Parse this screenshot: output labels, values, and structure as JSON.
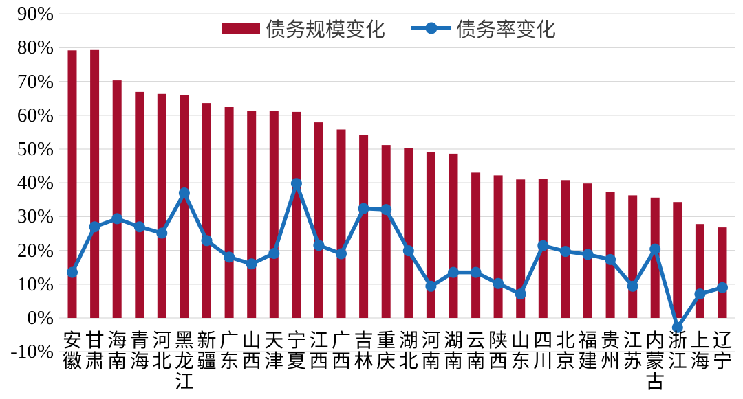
{
  "chart_data": {
    "type": "combo",
    "categories": [
      "安徽",
      "甘肃",
      "海南",
      "青海",
      "河北",
      "黑龙江",
      "新疆",
      "广东",
      "山西",
      "天津",
      "宁夏",
      "江西",
      "广西",
      "吉林",
      "重庆",
      "湖北",
      "河南",
      "湖南",
      "云南",
      "陕西",
      "山东",
      "四川",
      "北京",
      "福建",
      "贵州",
      "江苏",
      "内蒙古",
      "浙江",
      "上海",
      "辽宁"
    ],
    "series": [
      {
        "name": "债务规模变化",
        "type": "bar",
        "color": "#A50E2D",
        "values": [
          79.2,
          79.3,
          70.3,
          66.9,
          66.3,
          65.9,
          63.6,
          62.4,
          61.3,
          61.2,
          61.0,
          57.9,
          55.8,
          54.1,
          51.2,
          50.4,
          49.0,
          48.6,
          43.0,
          42.2,
          41.0,
          41.2,
          40.8,
          39.8,
          37.2,
          36.3,
          35.6,
          34.3,
          27.8,
          26.8
        ]
      },
      {
        "name": "债务率变化",
        "type": "line",
        "color": "#1B6FB9",
        "values": [
          13.5,
          27.0,
          29.4,
          27.0,
          25.1,
          37.0,
          22.9,
          18.0,
          16.0,
          19.1,
          39.8,
          21.5,
          19.0,
          32.4,
          32.1,
          19.9,
          9.4,
          13.5,
          13.5,
          10.2,
          7.1,
          21.4,
          19.7,
          18.8,
          17.3,
          9.4,
          20.4,
          -2.8,
          7.1,
          9.0
        ]
      }
    ],
    "ylim": [
      -10,
      90
    ],
    "y_tick_labels": [
      "90%",
      "80%",
      "70%",
      "60%",
      "50%",
      "40%",
      "30%",
      "20%",
      "10%",
      "0%",
      "-10%"
    ],
    "y_tick_values": [
      90,
      80,
      70,
      60,
      50,
      40,
      30,
      20,
      10,
      0,
      -10
    ],
    "grid": true,
    "legend_position": "top-center",
    "gridline_color": "#D9D9D9",
    "axis_text_color": "#000000",
    "background": "#FFFFFF"
  },
  "legend": {
    "bar_label": "债务规模变化",
    "line_label": "债务率变化"
  }
}
